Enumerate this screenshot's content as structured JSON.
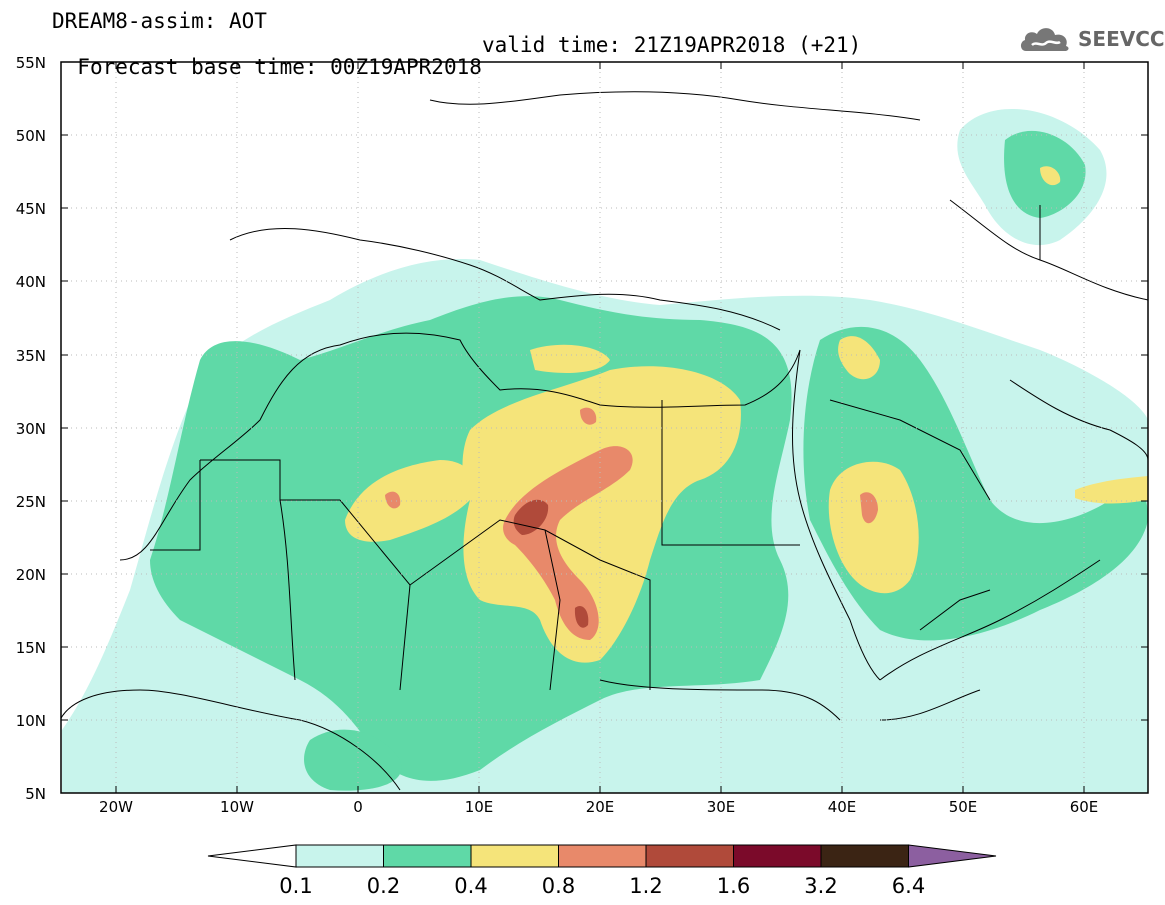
{
  "title": {
    "line1": "DREAM8-assim: AOT",
    "line2_base": "Forecast base time: 00Z19APR2018",
    "line2_valid": "valid time: 21Z19APR2018 (+21)"
  },
  "logo": {
    "text": "SEEVCCC",
    "icon": "cloud-icon"
  },
  "map": {
    "lat_labels": [
      "55N",
      "50N",
      "45N",
      "40N",
      "35N",
      "30N",
      "25N",
      "20N",
      "15N",
      "10N",
      "5N"
    ],
    "lon_labels": [
      "20W",
      "10W",
      "0",
      "10E",
      "20E",
      "30E",
      "40E",
      "50E",
      "60E"
    ]
  },
  "colorbar": {
    "levels": [
      "0.1",
      "0.2",
      "0.4",
      "0.8",
      "1.2",
      "1.6",
      "3.2",
      "6.4"
    ],
    "colors": [
      "#ffffff",
      "#c8f4ec",
      "#5fd9a7",
      "#f5e47a",
      "#e8896a",
      "#b04a3a",
      "#7b0a2a",
      "#3b2414",
      "#8c5fa0"
    ]
  }
}
